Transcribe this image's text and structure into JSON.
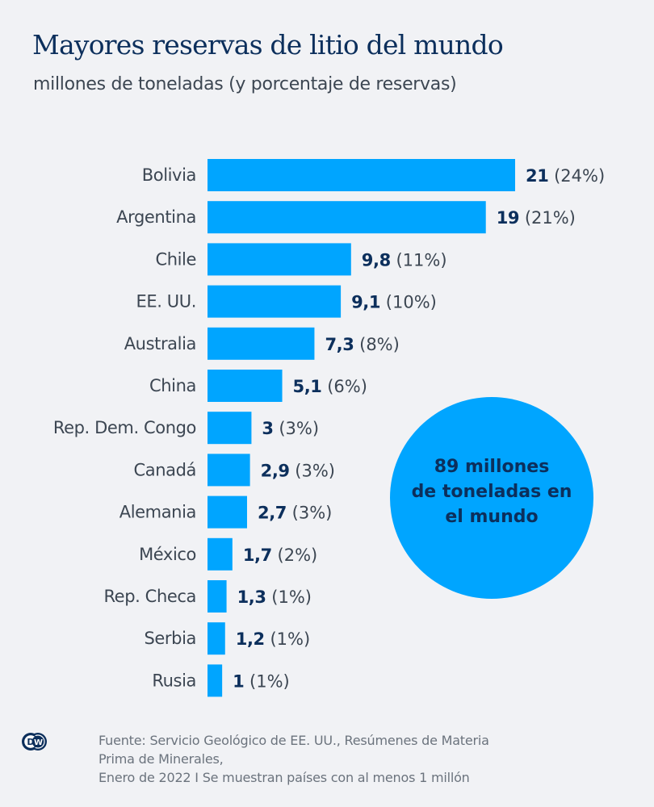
{
  "header": {
    "title": "Mayores reservas de litio del mundo",
    "subtitle": "millones de toneladas (y porcentaje de reservas)"
  },
  "chart_data": {
    "type": "bar",
    "orientation": "horizontal",
    "title": "Mayores reservas de litio del mundo",
    "subtitle": "millones de toneladas (y porcentaje de reservas)",
    "xlabel": "",
    "ylabel": "",
    "unit": "millones de toneladas",
    "xlim": [
      0,
      21
    ],
    "grid": false,
    "bar_color": "#00a5ff",
    "categories": [
      "Bolivia",
      "Argentina",
      "Chile",
      "EE. UU.",
      "Australia",
      "China",
      "Rep. Dem. Congo",
      "Canadá",
      "Alemania",
      "México",
      "Rep. Checa",
      "Serbia",
      "Rusia"
    ],
    "values": [
      21,
      19,
      9.8,
      9.1,
      7.3,
      5.1,
      3,
      2.9,
      2.7,
      1.7,
      1.3,
      1.2,
      1
    ],
    "value_labels": [
      "21",
      "19",
      "9,8",
      "9,1",
      "7,3",
      "5,1",
      "3",
      "2,9",
      "2,7",
      "1,7",
      "1,3",
      "1,2",
      "1"
    ],
    "percentages": [
      24,
      21,
      11,
      10,
      8,
      6,
      3,
      3,
      3,
      2,
      1,
      1,
      1
    ],
    "percent_labels": [
      "(24%)",
      "(21%)",
      "(11%)",
      "(10%)",
      "(8%)",
      "(6%)",
      "(3%)",
      "(3%)",
      "(3%)",
      "(2%)",
      "(1%)",
      "(1%)",
      "(1%)"
    ],
    "annotation": {
      "lines": [
        "89 millones",
        "de toneladas en",
        "el mundo"
      ],
      "total_value": 89
    }
  },
  "footer": {
    "logo_icon": "dw-logo",
    "logo_text": "DW",
    "source_lines": [
      "Fuente: Servicio Geológico de EE. UU., Resúmenes de Materia",
      "Prima de Minerales,",
      "Enero de 2022 I Se muestran países con al menos 1 millón"
    ]
  },
  "colors": {
    "background": "#f1f2f5",
    "bar": "#00a5ff",
    "title": "#0c2f5c",
    "text": "#3c4652",
    "source": "#6b737d"
  }
}
